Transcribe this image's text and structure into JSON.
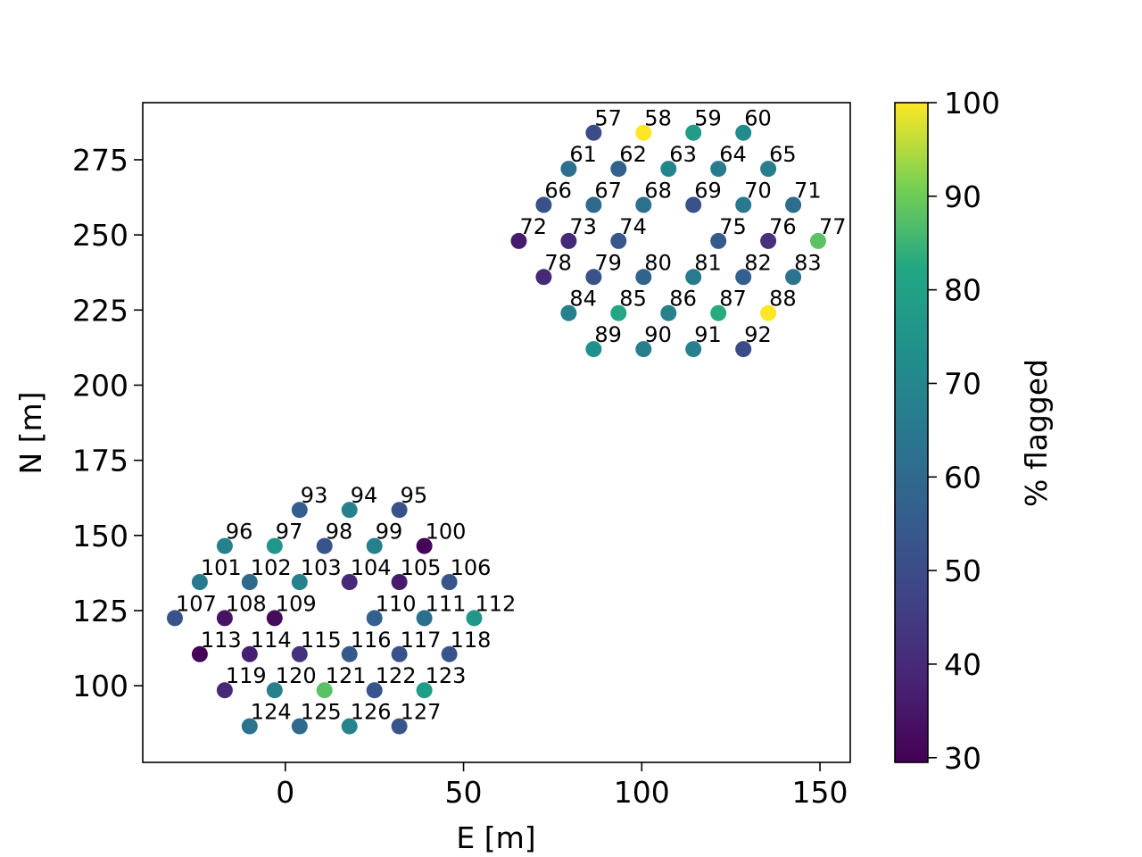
{
  "chart_data": {
    "type": "scatter",
    "xlabel": "E [m]",
    "ylabel": "N [m]",
    "colorbar_label": "% flagged",
    "colormap": "viridis",
    "xlim": [
      -40,
      158.5
    ],
    "ylim": [
      74.5,
      294
    ],
    "clim": [
      29.5,
      100
    ],
    "x_ticks": [
      0,
      50,
      100,
      150
    ],
    "y_ticks": [
      100,
      125,
      150,
      175,
      200,
      225,
      250,
      275
    ],
    "c_ticks": [
      30,
      40,
      50,
      60,
      70,
      80,
      90,
      100
    ],
    "grid": false,
    "points": [
      {
        "label": "57",
        "e": 86.5,
        "n": 284.0,
        "flagged": 50
      },
      {
        "label": "58",
        "e": 100.5,
        "n": 284.0,
        "flagged": 100
      },
      {
        "label": "59",
        "e": 114.5,
        "n": 284.0,
        "flagged": 78
      },
      {
        "label": "60",
        "e": 128.5,
        "n": 284.0,
        "flagged": 72
      },
      {
        "label": "61",
        "e": 79.5,
        "n": 272.0,
        "flagged": 62
      },
      {
        "label": "62",
        "e": 93.5,
        "n": 272.0,
        "flagged": 57
      },
      {
        "label": "63",
        "e": 107.5,
        "n": 272.0,
        "flagged": 70
      },
      {
        "label": "64",
        "e": 121.5,
        "n": 272.0,
        "flagged": 66
      },
      {
        "label": "65",
        "e": 135.5,
        "n": 272.0,
        "flagged": 67
      },
      {
        "label": "66",
        "e": 72.5,
        "n": 260.0,
        "flagged": 52
      },
      {
        "label": "67",
        "e": 86.5,
        "n": 260.0,
        "flagged": 60
      },
      {
        "label": "68",
        "e": 100.5,
        "n": 260.0,
        "flagged": 62
      },
      {
        "label": "69",
        "e": 114.5,
        "n": 260.0,
        "flagged": 52
      },
      {
        "label": "70",
        "e": 128.5,
        "n": 260.0,
        "flagged": 65
      },
      {
        "label": "71",
        "e": 142.5,
        "n": 260.0,
        "flagged": 61
      },
      {
        "label": "72",
        "e": 65.5,
        "n": 248.0,
        "flagged": 36
      },
      {
        "label": "73",
        "e": 79.5,
        "n": 248.0,
        "flagged": 40
      },
      {
        "label": "74",
        "e": 93.5,
        "n": 248.0,
        "flagged": 54
      },
      {
        "label": "75",
        "e": 121.5,
        "n": 248.0,
        "flagged": 55
      },
      {
        "label": "76",
        "e": 135.5,
        "n": 248.0,
        "flagged": 42
      },
      {
        "label": "77",
        "e": 149.5,
        "n": 248.0,
        "flagged": 88
      },
      {
        "label": "78",
        "e": 72.5,
        "n": 236.0,
        "flagged": 40
      },
      {
        "label": "79",
        "e": 86.5,
        "n": 236.0,
        "flagged": 52
      },
      {
        "label": "80",
        "e": 100.5,
        "n": 236.0,
        "flagged": 58
      },
      {
        "label": "81",
        "e": 114.5,
        "n": 236.0,
        "flagged": 66
      },
      {
        "label": "82",
        "e": 128.5,
        "n": 236.0,
        "flagged": 56
      },
      {
        "label": "83",
        "e": 142.5,
        "n": 236.0,
        "flagged": 63
      },
      {
        "label": "84",
        "e": 79.5,
        "n": 224.0,
        "flagged": 68
      },
      {
        "label": "85",
        "e": 93.5,
        "n": 224.0,
        "flagged": 82
      },
      {
        "label": "86",
        "e": 107.5,
        "n": 224.0,
        "flagged": 68
      },
      {
        "label": "87",
        "e": 121.5,
        "n": 224.0,
        "flagged": 83
      },
      {
        "label": "88",
        "e": 135.5,
        "n": 224.0,
        "flagged": 100
      },
      {
        "label": "89",
        "e": 86.5,
        "n": 212.0,
        "flagged": 74
      },
      {
        "label": "90",
        "e": 100.5,
        "n": 212.0,
        "flagged": 67
      },
      {
        "label": "91",
        "e": 114.5,
        "n": 212.0,
        "flagged": 68
      },
      {
        "label": "92",
        "e": 128.5,
        "n": 212.0,
        "flagged": 50
      },
      {
        "label": "93",
        "e": 4.0,
        "n": 158.5,
        "flagged": 56
      },
      {
        "label": "94",
        "e": 18.0,
        "n": 158.5,
        "flagged": 68
      },
      {
        "label": "95",
        "e": 32.0,
        "n": 158.5,
        "flagged": 52
      },
      {
        "label": "96",
        "e": -17.0,
        "n": 146.5,
        "flagged": 68
      },
      {
        "label": "97",
        "e": -3.0,
        "n": 146.5,
        "flagged": 76
      },
      {
        "label": "98",
        "e": 11.0,
        "n": 146.5,
        "flagged": 53
      },
      {
        "label": "99",
        "e": 25.0,
        "n": 146.5,
        "flagged": 68
      },
      {
        "label": "100",
        "e": 39.0,
        "n": 146.5,
        "flagged": 30
      },
      {
        "label": "101",
        "e": -24.0,
        "n": 134.5,
        "flagged": 66
      },
      {
        "label": "102",
        "e": -10.0,
        "n": 134.5,
        "flagged": 60
      },
      {
        "label": "103",
        "e": 4.0,
        "n": 134.5,
        "flagged": 68
      },
      {
        "label": "104",
        "e": 18.0,
        "n": 134.5,
        "flagged": 40
      },
      {
        "label": "105",
        "e": 32.0,
        "n": 134.5,
        "flagged": 36
      },
      {
        "label": "106",
        "e": 46.0,
        "n": 134.5,
        "flagged": 53
      },
      {
        "label": "107",
        "e": -31.0,
        "n": 122.5,
        "flagged": 52
      },
      {
        "label": "108",
        "e": -17.0,
        "n": 122.5,
        "flagged": 34
      },
      {
        "label": "109",
        "e": -3.0,
        "n": 122.5,
        "flagged": 32
      },
      {
        "label": "110",
        "e": 25.0,
        "n": 122.5,
        "flagged": 57
      },
      {
        "label": "111",
        "e": 39.0,
        "n": 122.5,
        "flagged": 62
      },
      {
        "label": "112",
        "e": 53.0,
        "n": 122.5,
        "flagged": 76
      },
      {
        "label": "113",
        "e": -24.0,
        "n": 110.5,
        "flagged": 30
      },
      {
        "label": "114",
        "e": -10.0,
        "n": 110.5,
        "flagged": 37
      },
      {
        "label": "115",
        "e": 4.0,
        "n": 110.5,
        "flagged": 42
      },
      {
        "label": "116",
        "e": 18.0,
        "n": 110.5,
        "flagged": 55
      },
      {
        "label": "117",
        "e": 32.0,
        "n": 110.5,
        "flagged": 52
      },
      {
        "label": "118",
        "e": 46.0,
        "n": 110.5,
        "flagged": 53
      },
      {
        "label": "119",
        "e": -17.0,
        "n": 98.5,
        "flagged": 40
      },
      {
        "label": "120",
        "e": -3.0,
        "n": 98.5,
        "flagged": 68
      },
      {
        "label": "121",
        "e": 11.0,
        "n": 98.5,
        "flagged": 88
      },
      {
        "label": "122",
        "e": 25.0,
        "n": 98.5,
        "flagged": 53
      },
      {
        "label": "123",
        "e": 39.0,
        "n": 98.5,
        "flagged": 78
      },
      {
        "label": "124",
        "e": -10.0,
        "n": 86.5,
        "flagged": 63
      },
      {
        "label": "125",
        "e": 4.0,
        "n": 86.5,
        "flagged": 60
      },
      {
        "label": "126",
        "e": 18.0,
        "n": 86.5,
        "flagged": 69
      },
      {
        "label": "127",
        "e": 32.0,
        "n": 86.5,
        "flagged": 53
      }
    ]
  }
}
